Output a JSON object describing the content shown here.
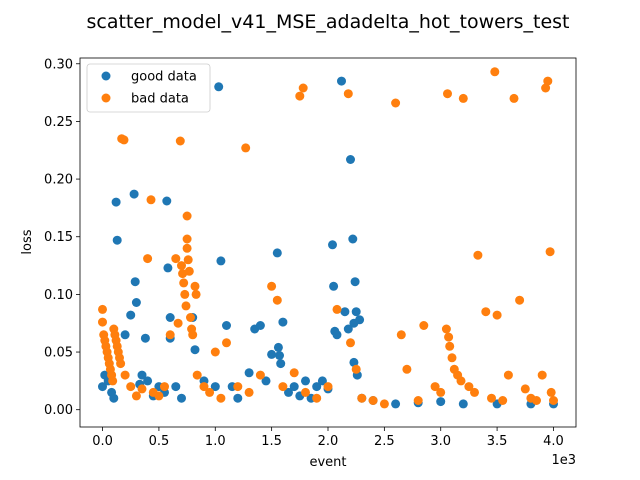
{
  "chart_data": {
    "type": "scatter",
    "title": "scatter_model_v41_MSE_adadelta_hot_towers_test",
    "xlabel": "event",
    "ylabel": "loss",
    "x_offset_label": "1e3",
    "xlim": [
      -0.2,
      4.2
    ],
    "ylim": [
      -0.015,
      0.305
    ],
    "xticks": [
      0.0,
      0.5,
      1.0,
      1.5,
      2.0,
      2.5,
      3.0,
      3.5,
      4.0
    ],
    "xtick_labels": [
      "0.0",
      "0.5",
      "1.0",
      "1.5",
      "2.0",
      "2.5",
      "3.0",
      "3.5",
      "4.0"
    ],
    "yticks": [
      0.0,
      0.05,
      0.1,
      0.15,
      0.2,
      0.25,
      0.3
    ],
    "ytick_labels": [
      "0.00",
      "0.05",
      "0.10",
      "0.15",
      "0.20",
      "0.25",
      "0.30"
    ],
    "legend_position": "top-left",
    "series": [
      {
        "name": "good data",
        "color": "#1f77b4",
        "points": [
          [
            0.0,
            0.02
          ],
          [
            0.02,
            0.03
          ],
          [
            0.05,
            0.025
          ],
          [
            0.08,
            0.015
          ],
          [
            0.1,
            0.01
          ],
          [
            0.12,
            0.18
          ],
          [
            0.13,
            0.147
          ],
          [
            0.2,
            0.065
          ],
          [
            0.25,
            0.082
          ],
          [
            0.28,
            0.187
          ],
          [
            0.29,
            0.111
          ],
          [
            0.3,
            0.093
          ],
          [
            0.33,
            0.022
          ],
          [
            0.35,
            0.03
          ],
          [
            0.38,
            0.062
          ],
          [
            0.4,
            0.025
          ],
          [
            0.45,
            0.012
          ],
          [
            0.5,
            0.02
          ],
          [
            0.55,
            0.015
          ],
          [
            0.57,
            0.181
          ],
          [
            0.58,
            0.123
          ],
          [
            0.6,
            0.062
          ],
          [
            0.6,
            0.08
          ],
          [
            0.65,
            0.02
          ],
          [
            0.7,
            0.01
          ],
          [
            0.8,
            0.08
          ],
          [
            0.82,
            0.052
          ],
          [
            0.9,
            0.025
          ],
          [
            1.0,
            0.02
          ],
          [
            1.03,
            0.28
          ],
          [
            1.05,
            0.129
          ],
          [
            1.1,
            0.073
          ],
          [
            1.15,
            0.02
          ],
          [
            1.2,
            0.01
          ],
          [
            1.3,
            0.032
          ],
          [
            1.35,
            0.07
          ],
          [
            1.4,
            0.073
          ],
          [
            1.45,
            0.025
          ],
          [
            1.5,
            0.048
          ],
          [
            1.55,
            0.136
          ],
          [
            1.56,
            0.054
          ],
          [
            1.57,
            0.047
          ],
          [
            1.58,
            0.04
          ],
          [
            1.6,
            0.076
          ],
          [
            1.65,
            0.015
          ],
          [
            1.7,
            0.02
          ],
          [
            1.75,
            0.012
          ],
          [
            1.8,
            0.025
          ],
          [
            1.85,
            0.01
          ],
          [
            1.9,
            0.02
          ],
          [
            1.95,
            0.025
          ],
          [
            2.0,
            0.018
          ],
          [
            2.04,
            0.143
          ],
          [
            2.05,
            0.107
          ],
          [
            2.06,
            0.068
          ],
          [
            2.08,
            0.065
          ],
          [
            2.12,
            0.285
          ],
          [
            2.15,
            0.085
          ],
          [
            2.18,
            0.07
          ],
          [
            2.2,
            0.217
          ],
          [
            2.22,
            0.148
          ],
          [
            2.23,
            0.075
          ],
          [
            2.24,
            0.111
          ],
          [
            2.25,
            0.085
          ],
          [
            2.23,
            0.041
          ],
          [
            2.26,
            0.03
          ],
          [
            2.28,
            0.078
          ],
          [
            2.3,
            0.01
          ],
          [
            2.4,
            0.008
          ],
          [
            2.6,
            0.005
          ],
          [
            2.8,
            0.006
          ],
          [
            3.0,
            0.007
          ],
          [
            3.2,
            0.005
          ],
          [
            3.5,
            0.005
          ],
          [
            3.8,
            0.005
          ],
          [
            4.0,
            0.005
          ]
        ]
      },
      {
        "name": "bad data",
        "color": "#ff7f0e",
        "points": [
          [
            0.0,
            0.087
          ],
          [
            0.0,
            0.076
          ],
          [
            0.01,
            0.065
          ],
          [
            0.02,
            0.06
          ],
          [
            0.03,
            0.055
          ],
          [
            0.04,
            0.05
          ],
          [
            0.05,
            0.045
          ],
          [
            0.06,
            0.04
          ],
          [
            0.07,
            0.035
          ],
          [
            0.08,
            0.03
          ],
          [
            0.09,
            0.025
          ],
          [
            0.1,
            0.07
          ],
          [
            0.11,
            0.065
          ],
          [
            0.12,
            0.06
          ],
          [
            0.13,
            0.055
          ],
          [
            0.14,
            0.05
          ],
          [
            0.15,
            0.045
          ],
          [
            0.16,
            0.04
          ],
          [
            0.17,
            0.235
          ],
          [
            0.19,
            0.234
          ],
          [
            0.2,
            0.03
          ],
          [
            0.25,
            0.02
          ],
          [
            0.3,
            0.012
          ],
          [
            0.35,
            0.018
          ],
          [
            0.4,
            0.131
          ],
          [
            0.43,
            0.182
          ],
          [
            0.45,
            0.015
          ],
          [
            0.5,
            0.012
          ],
          [
            0.55,
            0.02
          ],
          [
            0.6,
            0.065
          ],
          [
            0.65,
            0.131
          ],
          [
            0.67,
            0.075
          ],
          [
            0.69,
            0.233
          ],
          [
            0.7,
            0.125
          ],
          [
            0.71,
            0.118
          ],
          [
            0.72,
            0.11
          ],
          [
            0.73,
            0.1
          ],
          [
            0.74,
            0.09
          ],
          [
            0.75,
            0.168
          ],
          [
            0.75,
            0.148
          ],
          [
            0.75,
            0.14
          ],
          [
            0.76,
            0.13
          ],
          [
            0.77,
            0.12
          ],
          [
            0.78,
            0.08
          ],
          [
            0.79,
            0.07
          ],
          [
            0.8,
            0.065
          ],
          [
            0.82,
            0.107
          ],
          [
            0.83,
            0.1
          ],
          [
            0.84,
            0.03
          ],
          [
            0.9,
            0.02
          ],
          [
            0.95,
            0.015
          ],
          [
            1.0,
            0.05
          ],
          [
            1.05,
            0.01
          ],
          [
            1.1,
            0.058
          ],
          [
            1.2,
            0.02
          ],
          [
            1.27,
            0.227
          ],
          [
            1.3,
            0.015
          ],
          [
            1.4,
            0.03
          ],
          [
            1.5,
            0.107
          ],
          [
            1.55,
            0.095
          ],
          [
            1.6,
            0.02
          ],
          [
            1.7,
            0.032
          ],
          [
            1.75,
            0.272
          ],
          [
            1.78,
            0.279
          ],
          [
            1.8,
            0.015
          ],
          [
            1.9,
            0.01
          ],
          [
            2.0,
            0.02
          ],
          [
            2.08,
            0.087
          ],
          [
            2.18,
            0.274
          ],
          [
            2.2,
            0.058
          ],
          [
            2.25,
            0.035
          ],
          [
            2.3,
            0.01
          ],
          [
            2.4,
            0.008
          ],
          [
            2.5,
            0.005
          ],
          [
            2.6,
            0.266
          ],
          [
            2.65,
            0.065
          ],
          [
            2.7,
            0.035
          ],
          [
            2.8,
            0.008
          ],
          [
            2.85,
            0.073
          ],
          [
            2.95,
            0.02
          ],
          [
            3.0,
            0.015
          ],
          [
            3.05,
            0.07
          ],
          [
            3.06,
            0.274
          ],
          [
            3.07,
            0.063
          ],
          [
            3.08,
            0.055
          ],
          [
            3.1,
            0.045
          ],
          [
            3.12,
            0.035
          ],
          [
            3.15,
            0.03
          ],
          [
            3.18,
            0.025
          ],
          [
            3.2,
            0.27
          ],
          [
            3.25,
            0.02
          ],
          [
            3.3,
            0.015
          ],
          [
            3.33,
            0.134
          ],
          [
            3.4,
            0.085
          ],
          [
            3.45,
            0.01
          ],
          [
            3.48,
            0.293
          ],
          [
            3.5,
            0.082
          ],
          [
            3.55,
            0.008
          ],
          [
            3.6,
            0.03
          ],
          [
            3.65,
            0.27
          ],
          [
            3.7,
            0.095
          ],
          [
            3.75,
            0.018
          ],
          [
            3.8,
            0.01
          ],
          [
            3.85,
            0.008
          ],
          [
            3.9,
            0.03
          ],
          [
            3.93,
            0.279
          ],
          [
            3.95,
            0.285
          ],
          [
            3.97,
            0.137
          ],
          [
            3.98,
            0.015
          ],
          [
            4.0,
            0.008
          ]
        ]
      }
    ]
  }
}
